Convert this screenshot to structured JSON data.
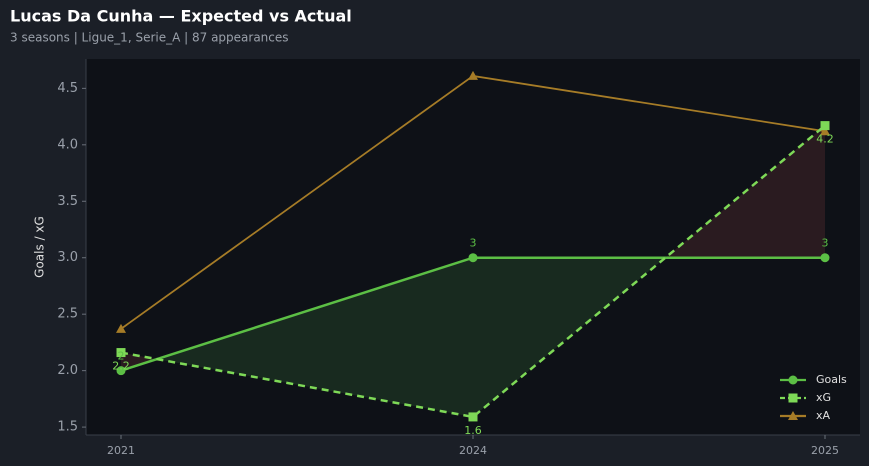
{
  "chart_data": {
    "type": "line",
    "title": "Lucas Da Cunha — Expected vs Actual",
    "subtitle": "3 seasons | Ligue_1, Serie_A | 87 appearances",
    "y_label": "Goals / xG",
    "categories": [
      "2021",
      "2024",
      "2025"
    ],
    "series": [
      {
        "name": "Goals",
        "color": "#5cbf45",
        "marker": "circle",
        "dash": false,
        "values": [
          2,
          3,
          3
        ]
      },
      {
        "name": "xG",
        "color": "#7ed957",
        "marker": "square",
        "dash": true,
        "values": [
          2.16,
          1.59,
          4.17
        ],
        "value_labels": [
          "2.2",
          "1.6",
          "4.2"
        ]
      },
      {
        "name": "xA",
        "color": "#a67c27",
        "marker": "triangle",
        "dash": false,
        "values": [
          2.37,
          4.61,
          4.12
        ]
      }
    ],
    "shade": {
      "over": "#1a2e20",
      "under": "#2e1d21"
    },
    "ylim": [
      1.43,
      4.76
    ],
    "yticks": [
      {
        "value": 1.5,
        "label": "1.5"
      },
      {
        "value": 2,
        "label": "2.0"
      },
      {
        "value": 2.5,
        "label": "2.5"
      },
      {
        "value": 3,
        "label": "3.0"
      },
      {
        "value": 3.5,
        "label": "3.5"
      },
      {
        "value": 4,
        "label": "4.0"
      },
      {
        "value": 4.5,
        "label": "4.5"
      }
    ],
    "legend": "lower right"
  }
}
